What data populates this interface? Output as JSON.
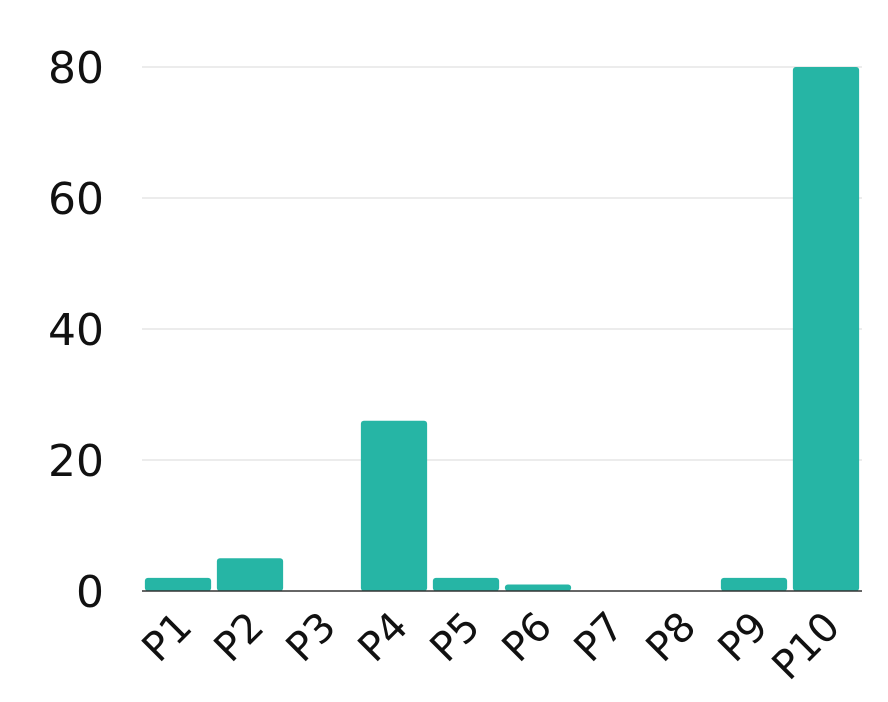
{
  "chart_data": {
    "type": "bar",
    "title": "",
    "xlabel": "",
    "ylabel": "",
    "categories": [
      "P1",
      "P2",
      "P3",
      "P4",
      "P5",
      "P6",
      "P7",
      "P8",
      "P9",
      "P10"
    ],
    "values": [
      2,
      5,
      0,
      26,
      2,
      1,
      0,
      0,
      2,
      80
    ],
    "ylim": [
      0,
      80
    ],
    "yticks": [
      0,
      20,
      40,
      60,
      80
    ],
    "grid": true,
    "legend": "none",
    "colors": {
      "bar": "#26b5a5",
      "grid": "#d9d9d9",
      "axis": "#333333",
      "text": "#111111"
    }
  }
}
